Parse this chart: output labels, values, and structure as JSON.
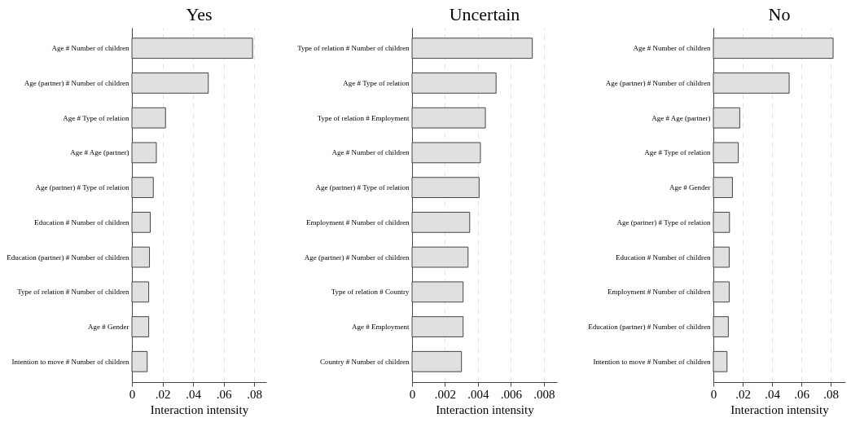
{
  "chart_data": [
    {
      "type": "bar",
      "orientation": "horizontal",
      "title": "Yes",
      "xlabel": "Interaction intensity",
      "grid": "x",
      "color": "#e0e0e0",
      "categories": [
        "Age # Number of children",
        "Age (partner) # Number of children",
        "Age # Type of relation",
        "Age # Age (partner)",
        "Age (partner) # Type of relation",
        "Education  # Number of children",
        "Education (partner) # Number of children",
        "Type of relation # Number of children",
        "Age # Gender",
        "Intention to move # Number of children"
      ],
      "values": [
        0.079,
        0.05,
        0.022,
        0.016,
        0.014,
        0.012,
        0.0115,
        0.011,
        0.011,
        0.01
      ],
      "xlim": [
        0,
        0.088
      ],
      "xticks": [
        {
          "value": 0,
          "label": "0"
        },
        {
          "value": 0.02,
          "label": ".02"
        },
        {
          "value": 0.04,
          "label": ".04"
        },
        {
          "value": 0.06,
          "label": ".06"
        },
        {
          "value": 0.08,
          "label": ".08"
        }
      ]
    },
    {
      "type": "bar",
      "orientation": "horizontal",
      "title": "Uncertain",
      "xlabel": "Interaction intensity",
      "grid": "x",
      "color": "#e0e0e0",
      "categories": [
        "Type of relation # Number of children",
        "Age # Type of relation",
        "Type of relation # Employment",
        "Age # Number of children",
        "Age (partner) # Type of relation",
        "Employment # Number of children",
        "Age (partner) # Number of children",
        "Type of relation # Country",
        "Age # Employment",
        "Country # Number of children"
      ],
      "values": [
        0.0073,
        0.0051,
        0.00445,
        0.00415,
        0.00407,
        0.0035,
        0.0034,
        0.0031,
        0.0031,
        0.003
      ],
      "xlim": [
        0,
        0.0088
      ],
      "xticks": [
        {
          "value": 0,
          "label": "0"
        },
        {
          "value": 0.002,
          "label": ".002"
        },
        {
          "value": 0.004,
          "label": ".004"
        },
        {
          "value": 0.006,
          "label": ".006"
        },
        {
          "value": 0.008,
          "label": ".008"
        }
      ]
    },
    {
      "type": "bar",
      "orientation": "horizontal",
      "title": "No",
      "xlabel": "Interaction intensity",
      "grid": "x",
      "color": "#e0e0e0",
      "categories": [
        "Age # Number of children",
        "Age (partner) # Number of children",
        "Age # Age (partner)",
        "Age # Type of relation",
        "Age # Gender",
        "Age (partner) # Type of relation",
        "Education  # Number of children",
        "Employment # Number of children",
        "Education (partner) # Number of children",
        "Intention to move # Number of children"
      ],
      "values": [
        0.0817,
        0.0517,
        0.018,
        0.017,
        0.013,
        0.011,
        0.0108,
        0.0108,
        0.0102,
        0.0093
      ],
      "xlim": [
        0,
        0.09
      ],
      "xticks": [
        {
          "value": 0,
          "label": "0"
        },
        {
          "value": 0.02,
          "label": ".02"
        },
        {
          "value": 0.04,
          "label": ".04"
        },
        {
          "value": 0.06,
          "label": ".06"
        },
        {
          "value": 0.08,
          "label": ".08"
        }
      ]
    }
  ]
}
